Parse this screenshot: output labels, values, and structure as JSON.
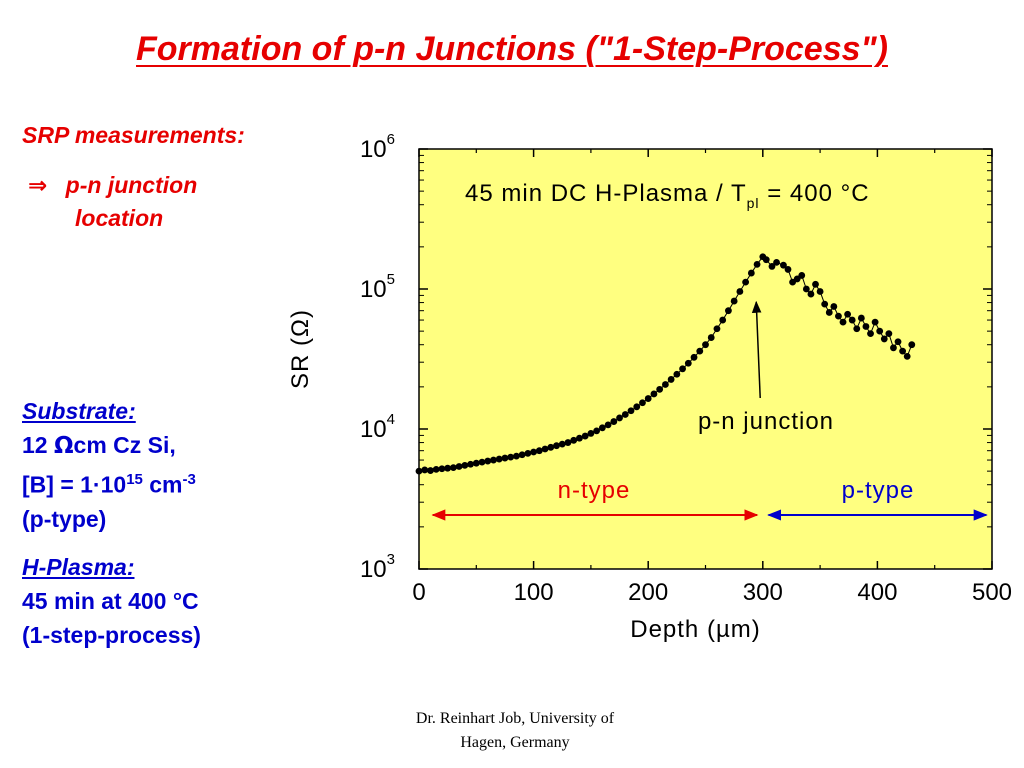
{
  "slide": {
    "title": "Formation of p-n Junctions (\"1-Step-Process\")",
    "srp_heading": "SRP measurements:",
    "arrow_symbol": "⇒",
    "srp_line1": "p-n junction",
    "srp_line2": "location",
    "substrate_heading": "Substrate:",
    "substrate_resistivity_value": "12 ",
    "substrate_resistivity_unit": "Ω",
    "substrate_resistivity_rest": "cm Cz Si,",
    "substrate_doping_prefix": "[B] = 1·10",
    "substrate_doping_exp": "15",
    "substrate_doping_unit": " cm",
    "substrate_doping_unit_exp": "-3",
    "substrate_type": "(p-type)",
    "plasma_heading": "H-Plasma:",
    "plasma_line1": "45 min at 400 °C",
    "plasma_line2": "(1-step-process)",
    "footer_line1": "Dr. Reinhart Job, University of",
    "footer_line2": "Hagen, Germany"
  },
  "chart_data": {
    "type": "scatter",
    "annotation_title": "45 min DC H-Plasma / T",
    "annotation_title_subscript": "pl",
    "annotation_title_suffix": " = 400 °C",
    "xlabel": "Depth (µm)",
    "ylabel": "SR (Ω)",
    "x_ticks": [
      "0",
      "100",
      "200",
      "300",
      "400",
      "500"
    ],
    "y_ticks": [
      {
        "base": "10",
        "exp": "3"
      },
      {
        "base": "10",
        "exp": "4"
      },
      {
        "base": "10",
        "exp": "5"
      },
      {
        "base": "10",
        "exp": "6"
      }
    ],
    "xlim": [
      0,
      500
    ],
    "ylim": [
      1000,
      1000000
    ],
    "yscale": "log",
    "grid": false,
    "background_color": "#ffff80",
    "marker_color": "#000000",
    "pn_junction_label": "p-n junction",
    "pn_junction_depth": 296,
    "n_type_label": "n-type",
    "n_type_color": "#e60000",
    "n_type_range": [
      12,
      295
    ],
    "p_type_label": "p-type",
    "p_type_color": "#0000cc",
    "p_type_range": [
      305,
      495
    ],
    "series": [
      {
        "points": [
          [
            0,
            5000
          ],
          [
            5,
            5100
          ],
          [
            10,
            5050
          ],
          [
            15,
            5150
          ],
          [
            20,
            5200
          ],
          [
            25,
            5250
          ],
          [
            30,
            5300
          ],
          [
            35,
            5400
          ],
          [
            40,
            5500
          ],
          [
            45,
            5600
          ],
          [
            50,
            5700
          ],
          [
            55,
            5800
          ],
          [
            60,
            5900
          ],
          [
            65,
            6000
          ],
          [
            70,
            6100
          ],
          [
            75,
            6200
          ],
          [
            80,
            6300
          ],
          [
            85,
            6400
          ],
          [
            90,
            6550
          ],
          [
            95,
            6700
          ],
          [
            100,
            6850
          ],
          [
            105,
            7000
          ],
          [
            110,
            7200
          ],
          [
            115,
            7400
          ],
          [
            120,
            7600
          ],
          [
            125,
            7800
          ],
          [
            130,
            8000
          ],
          [
            135,
            8300
          ],
          [
            140,
            8600
          ],
          [
            145,
            8900
          ],
          [
            150,
            9300
          ],
          [
            155,
            9700
          ],
          [
            160,
            10200
          ],
          [
            165,
            10700
          ],
          [
            170,
            11300
          ],
          [
            175,
            12000
          ],
          [
            180,
            12700
          ],
          [
            185,
            13500
          ],
          [
            190,
            14400
          ],
          [
            195,
            15400
          ],
          [
            200,
            16500
          ],
          [
            205,
            17800
          ],
          [
            210,
            19200
          ],
          [
            215,
            20800
          ],
          [
            220,
            22600
          ],
          [
            225,
            24600
          ],
          [
            230,
            26900
          ],
          [
            235,
            29500
          ],
          [
            240,
            32500
          ],
          [
            245,
            36000
          ],
          [
            250,
            40000
          ],
          [
            255,
            45000
          ],
          [
            260,
            52000
          ],
          [
            265,
            60000
          ],
          [
            270,
            70000
          ],
          [
            275,
            82000
          ],
          [
            280,
            96000
          ],
          [
            285,
            112000
          ],
          [
            290,
            130000
          ],
          [
            295,
            150000
          ],
          [
            300,
            170000
          ],
          [
            303,
            162000
          ],
          [
            308,
            145000
          ],
          [
            312,
            155000
          ],
          [
            318,
            148000
          ],
          [
            322,
            138000
          ],
          [
            326,
            112000
          ],
          [
            330,
            118000
          ],
          [
            334,
            125000
          ],
          [
            338,
            100000
          ],
          [
            342,
            92000
          ],
          [
            346,
            108000
          ],
          [
            350,
            96000
          ],
          [
            354,
            78000
          ],
          [
            358,
            68000
          ],
          [
            362,
            75000
          ],
          [
            366,
            64000
          ],
          [
            370,
            58000
          ],
          [
            374,
            66000
          ],
          [
            378,
            60000
          ],
          [
            382,
            52000
          ],
          [
            386,
            62000
          ],
          [
            390,
            54000
          ],
          [
            394,
            48000
          ],
          [
            398,
            58000
          ],
          [
            402,
            50000
          ],
          [
            406,
            44000
          ],
          [
            410,
            48000
          ],
          [
            414,
            38000
          ],
          [
            418,
            42000
          ],
          [
            422,
            36000
          ],
          [
            426,
            33000
          ],
          [
            430,
            40000
          ]
        ]
      }
    ]
  }
}
